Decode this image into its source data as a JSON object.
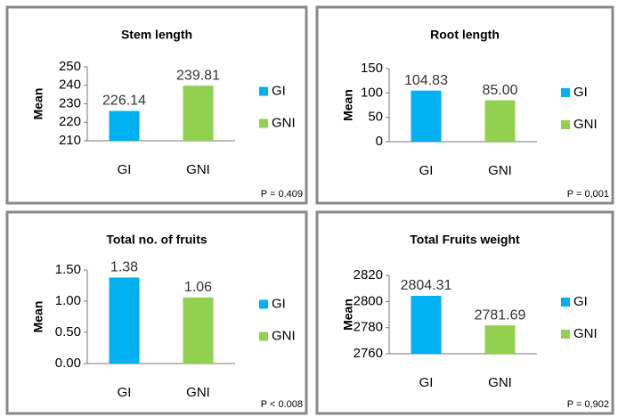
{
  "chart_data": [
    {
      "type": "bar",
      "title": "Stem length",
      "ylabel": "Mean",
      "categories": [
        "GI",
        "GNI"
      ],
      "values": [
        226.14,
        239.81
      ],
      "colors": [
        "#00b0f0",
        "#92d050"
      ],
      "ylim": [
        210,
        250
      ],
      "yticks": [
        210,
        220,
        230,
        240,
        250
      ],
      "annotation": "P = 0.409"
    },
    {
      "type": "bar",
      "title": "Root length",
      "ylabel": "Mean",
      "categories": [
        "GI",
        "GNI"
      ],
      "values": [
        104.83,
        85.0
      ],
      "value_labels": [
        "104.83",
        "85.00"
      ],
      "colors": [
        "#00b0f0",
        "#92d050"
      ],
      "ylim": [
        0,
        150
      ],
      "yticks": [
        0,
        50,
        100,
        150
      ],
      "annotation": "P = 0,001"
    },
    {
      "type": "bar",
      "title": "Total no. of fruits",
      "ylabel": "Mean",
      "categories": [
        "GI",
        "GNI"
      ],
      "values": [
        1.38,
        1.06
      ],
      "colors": [
        "#00b0f0",
        "#92d050"
      ],
      "ylim": [
        0,
        1.5
      ],
      "yticks": [
        {
          "value": 0,
          "label": "0.00"
        },
        {
          "value": 0.5,
          "label": "0.50"
        },
        {
          "value": 1,
          "label": "1.00"
        },
        {
          "value": 1.5,
          "label": "1.50"
        }
      ],
      "annotation": "P < 0.008"
    },
    {
      "type": "bar",
      "title": "Total Fruits weight",
      "ylabel": "Mean",
      "categories": [
        "GI",
        "GNI"
      ],
      "values": [
        2804.31,
        2781.69
      ],
      "colors": [
        "#00b0f0",
        "#92d050"
      ],
      "ylim": [
        2760,
        2820
      ],
      "yticks": [
        2760,
        2780,
        2800,
        2820
      ],
      "annotation": "P = 0,902"
    }
  ]
}
